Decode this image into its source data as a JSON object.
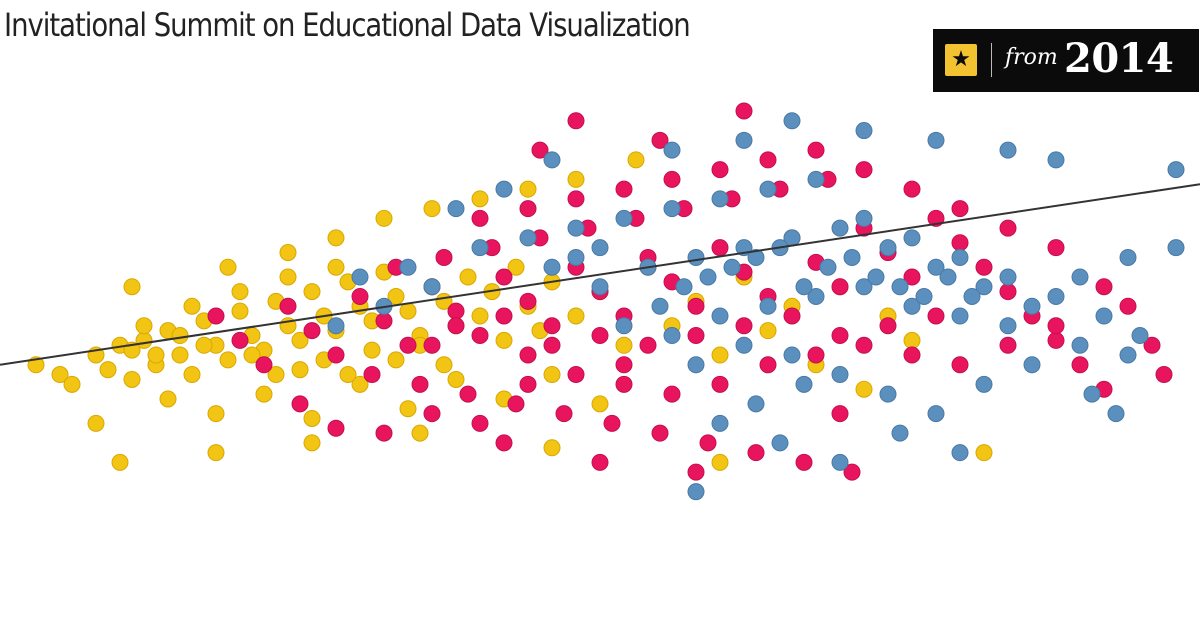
{
  "header": {
    "title": "Invitational Summit on Educational Data Visualization"
  },
  "badge": {
    "icon": "star-icon",
    "from_label": "from",
    "year": "2014"
  },
  "colors": {
    "yellow": "#f2c414",
    "pink": "#e8155e",
    "blue": "#5b8fbd",
    "trend_line": "#333333",
    "badge_bg": "#0b0b0b",
    "badge_icon_bg": "#f2c230"
  },
  "chart_data": {
    "type": "scatter",
    "title": "",
    "xlabel": "",
    "ylabel": "",
    "xlim": [
      0,
      100
    ],
    "ylim": [
      0,
      100
    ],
    "grid": false,
    "legend": "none",
    "series": [
      {
        "color": "yellow",
        "values": [
          [
            3,
            40
          ],
          [
            5,
            38
          ],
          [
            6,
            36
          ],
          [
            8,
            42
          ],
          [
            9,
            39
          ],
          [
            10,
            44
          ],
          [
            11,
            37
          ],
          [
            12,
            45
          ],
          [
            13,
            40
          ],
          [
            14,
            47
          ],
          [
            15,
            42
          ],
          [
            16,
            38
          ],
          [
            17,
            49
          ],
          [
            18,
            44
          ],
          [
            19,
            41
          ],
          [
            20,
            51
          ],
          [
            21,
            46
          ],
          [
            22,
            43
          ],
          [
            23,
            53
          ],
          [
            24,
            48
          ],
          [
            25,
            45
          ],
          [
            26,
            55
          ],
          [
            27,
            50
          ],
          [
            28,
            47
          ],
          [
            29,
            57
          ],
          [
            30,
            52
          ],
          [
            31,
            49
          ],
          [
            32,
            59
          ],
          [
            33,
            54
          ],
          [
            34,
            51
          ],
          [
            35,
            46
          ],
          [
            36,
            56
          ],
          [
            37,
            53
          ],
          [
            38,
            48
          ],
          [
            39,
            58
          ],
          [
            40,
            50
          ],
          [
            41,
            55
          ],
          [
            42,
            45
          ],
          [
            43,
            60
          ],
          [
            44,
            52
          ],
          [
            45,
            47
          ],
          [
            46,
            57
          ],
          [
            48,
            50
          ],
          [
            50,
            55
          ],
          [
            52,
            44
          ],
          [
            54,
            60
          ],
          [
            56,
            48
          ],
          [
            58,
            53
          ],
          [
            60,
            42
          ],
          [
            62,
            58
          ],
          [
            64,
            47
          ],
          [
            66,
            52
          ],
          [
            68,
            40
          ],
          [
            70,
            56
          ],
          [
            72,
            35
          ],
          [
            74,
            50
          ],
          [
            76,
            45
          ],
          [
            8,
            28
          ],
          [
            14,
            33
          ],
          [
            18,
            30
          ],
          [
            22,
            34
          ],
          [
            26,
            29
          ],
          [
            30,
            36
          ],
          [
            34,
            31
          ],
          [
            38,
            37
          ],
          [
            42,
            33
          ],
          [
            46,
            38
          ],
          [
            50,
            32
          ],
          [
            11,
            56
          ],
          [
            19,
            60
          ],
          [
            24,
            63
          ],
          [
            28,
            66
          ],
          [
            32,
            70
          ],
          [
            36,
            72
          ],
          [
            40,
            74
          ],
          [
            44,
            76
          ],
          [
            48,
            78
          ],
          [
            53,
            82
          ],
          [
            10,
            20
          ],
          [
            18,
            22
          ],
          [
            26,
            24
          ],
          [
            35,
            26
          ],
          [
            46,
            23
          ],
          [
            82,
            22
          ],
          [
            60,
            20
          ],
          [
            29,
            38
          ],
          [
            31,
            43
          ],
          [
            27,
            41
          ],
          [
            25,
            39
          ],
          [
            33,
            41
          ],
          [
            35,
            44
          ],
          [
            37,
            40
          ],
          [
            21,
            42
          ],
          [
            23,
            38
          ],
          [
            17,
            44
          ],
          [
            15,
            46
          ],
          [
            13,
            42
          ],
          [
            11,
            43
          ],
          [
            12,
            48
          ],
          [
            16,
            52
          ],
          [
            20,
            55
          ],
          [
            24,
            58
          ],
          [
            28,
            60
          ]
        ]
      },
      {
        "color": "pink",
        "values": [
          [
            18,
            50
          ],
          [
            20,
            45
          ],
          [
            22,
            40
          ],
          [
            24,
            52
          ],
          [
            26,
            47
          ],
          [
            28,
            42
          ],
          [
            30,
            54
          ],
          [
            32,
            49
          ],
          [
            34,
            44
          ],
          [
            36,
            56
          ],
          [
            38,
            51
          ],
          [
            40,
            46
          ],
          [
            42,
            58
          ],
          [
            44,
            53
          ],
          [
            46,
            48
          ],
          [
            48,
            60
          ],
          [
            50,
            55
          ],
          [
            52,
            50
          ],
          [
            54,
            62
          ],
          [
            56,
            57
          ],
          [
            58,
            52
          ],
          [
            60,
            64
          ],
          [
            62,
            59
          ],
          [
            64,
            54
          ],
          [
            66,
            66
          ],
          [
            68,
            61
          ],
          [
            70,
            56
          ],
          [
            72,
            68
          ],
          [
            74,
            63
          ],
          [
            76,
            58
          ],
          [
            78,
            70
          ],
          [
            80,
            65
          ],
          [
            82,
            60
          ],
          [
            84,
            55
          ],
          [
            86,
            50
          ],
          [
            88,
            45
          ],
          [
            90,
            40
          ],
          [
            92,
            35
          ],
          [
            94,
            52
          ],
          [
            97,
            38
          ],
          [
            31,
            38
          ],
          [
            35,
            36
          ],
          [
            39,
            34
          ],
          [
            43,
            32
          ],
          [
            47,
            30
          ],
          [
            51,
            28
          ],
          [
            55,
            26
          ],
          [
            59,
            24
          ],
          [
            63,
            22
          ],
          [
            67,
            20
          ],
          [
            71,
            18
          ],
          [
            40,
            70
          ],
          [
            44,
            72
          ],
          [
            48,
            74
          ],
          [
            52,
            76
          ],
          [
            56,
            78
          ],
          [
            60,
            80
          ],
          [
            64,
            82
          ],
          [
            68,
            84
          ],
          [
            72,
            80
          ],
          [
            76,
            76
          ],
          [
            80,
            72
          ],
          [
            84,
            68
          ],
          [
            88,
            64
          ],
          [
            33,
            60
          ],
          [
            37,
            62
          ],
          [
            41,
            64
          ],
          [
            45,
            66
          ],
          [
            49,
            68
          ],
          [
            53,
            70
          ],
          [
            57,
            72
          ],
          [
            61,
            74
          ],
          [
            65,
            76
          ],
          [
            69,
            78
          ],
          [
            36,
            44
          ],
          [
            38,
            48
          ],
          [
            42,
            50
          ],
          [
            44,
            42
          ],
          [
            46,
            44
          ],
          [
            50,
            46
          ],
          [
            52,
            40
          ],
          [
            54,
            44
          ],
          [
            58,
            46
          ],
          [
            62,
            48
          ],
          [
            66,
            50
          ],
          [
            70,
            46
          ],
          [
            74,
            48
          ],
          [
            78,
            50
          ],
          [
            42,
            24
          ],
          [
            50,
            20
          ],
          [
            58,
            18
          ],
          [
            70,
            30
          ],
          [
            45,
            84
          ],
          [
            55,
            86
          ],
          [
            48,
            90
          ],
          [
            62,
            92
          ],
          [
            25,
            32
          ],
          [
            28,
            27
          ],
          [
            32,
            26
          ],
          [
            36,
            30
          ],
          [
            40,
            28
          ],
          [
            44,
            36
          ],
          [
            48,
            38
          ],
          [
            52,
            36
          ],
          [
            56,
            34
          ],
          [
            60,
            36
          ],
          [
            64,
            40
          ],
          [
            68,
            42
          ],
          [
            72,
            44
          ],
          [
            76,
            42
          ],
          [
            80,
            40
          ],
          [
            84,
            44
          ],
          [
            88,
            48
          ],
          [
            92,
            56
          ],
          [
            96,
            44
          ]
        ]
      },
      {
        "color": "blue",
        "values": [
          [
            40,
            64
          ],
          [
            44,
            66
          ],
          [
            48,
            68
          ],
          [
            52,
            70
          ],
          [
            56,
            72
          ],
          [
            60,
            74
          ],
          [
            64,
            76
          ],
          [
            68,
            78
          ],
          [
            72,
            70
          ],
          [
            76,
            66
          ],
          [
            80,
            62
          ],
          [
            84,
            58
          ],
          [
            88,
            54
          ],
          [
            92,
            50
          ],
          [
            95,
            46
          ],
          [
            50,
            56
          ],
          [
            54,
            60
          ],
          [
            58,
            62
          ],
          [
            62,
            64
          ],
          [
            66,
            66
          ],
          [
            70,
            68
          ],
          [
            74,
            64
          ],
          [
            78,
            60
          ],
          [
            82,
            56
          ],
          [
            86,
            52
          ],
          [
            90,
            58
          ],
          [
            94,
            62
          ],
          [
            98,
            64
          ],
          [
            60,
            50
          ],
          [
            64,
            52
          ],
          [
            68,
            54
          ],
          [
            72,
            56
          ],
          [
            76,
            52
          ],
          [
            80,
            50
          ],
          [
            84,
            48
          ],
          [
            52,
            48
          ],
          [
            56,
            46
          ],
          [
            58,
            40
          ],
          [
            62,
            44
          ],
          [
            66,
            42
          ],
          [
            70,
            38
          ],
          [
            74,
            34
          ],
          [
            78,
            30
          ],
          [
            82,
            36
          ],
          [
            86,
            40
          ],
          [
            90,
            44
          ],
          [
            94,
            42
          ],
          [
            98,
            80
          ],
          [
            88,
            82
          ],
          [
            84,
            84
          ],
          [
            78,
            86
          ],
          [
            72,
            88
          ],
          [
            66,
            90
          ],
          [
            62,
            86
          ],
          [
            56,
            84
          ],
          [
            46,
            82
          ],
          [
            42,
            76
          ],
          [
            38,
            72
          ],
          [
            65,
            24
          ],
          [
            70,
            20
          ],
          [
            75,
            26
          ],
          [
            80,
            22
          ],
          [
            58,
            14
          ],
          [
            60,
            28
          ],
          [
            63,
            32
          ],
          [
            67,
            36
          ],
          [
            55,
            52
          ],
          [
            57,
            56
          ],
          [
            59,
            58
          ],
          [
            61,
            60
          ],
          [
            63,
            62
          ],
          [
            65,
            64
          ],
          [
            67,
            56
          ],
          [
            69,
            60
          ],
          [
            71,
            62
          ],
          [
            73,
            58
          ],
          [
            75,
            56
          ],
          [
            77,
            54
          ],
          [
            79,
            58
          ],
          [
            81,
            54
          ],
          [
            28,
            48
          ],
          [
            32,
            52
          ],
          [
            36,
            56
          ],
          [
            34,
            60
          ],
          [
            30,
            58
          ],
          [
            46,
            60
          ],
          [
            48,
            62
          ],
          [
            50,
            64
          ],
          [
            93,
            30
          ],
          [
            91,
            34
          ]
        ]
      }
    ],
    "trend_line": [
      [
        0,
        40
      ],
      [
        100,
        77
      ]
    ]
  }
}
